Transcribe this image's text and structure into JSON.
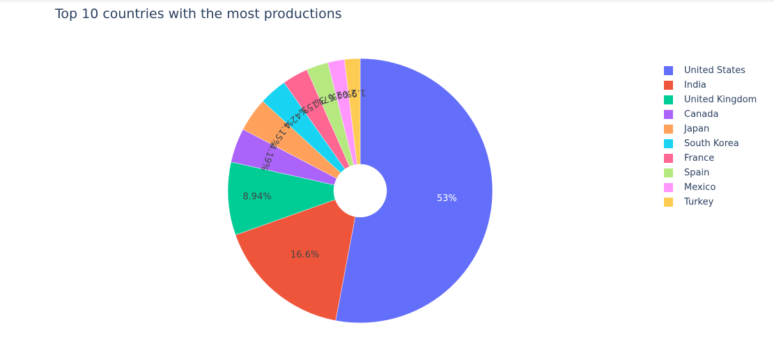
{
  "chart_data": {
    "type": "pie",
    "hole": true,
    "title": "Top 10 countries with the most productions",
    "labels": [
      "United States",
      "India",
      "United Kingdom",
      "Canada",
      "Japan",
      "South Korea",
      "France",
      "Spain",
      "Mexico",
      "Turkey"
    ],
    "values": [
      53,
      16.6,
      8.94,
      4.19,
      4.15,
      3.42,
      3.15,
      2.67,
      2.04,
      1.9
    ],
    "slice_text": [
      "53%",
      "16.6%",
      "8.94%",
      "4.19%",
      "4.15%",
      "3.42%",
      "3.15%",
      "2.67%",
      "2.04%",
      "1.9%"
    ],
    "colors": [
      "#636efa",
      "#EF553B",
      "#00cc96",
      "#ab63fa",
      "#FFA15A",
      "#19d3f3",
      "#FF6692",
      "#B6E880",
      "#FF97FF",
      "#FECB52"
    ],
    "legend_position": "right"
  }
}
